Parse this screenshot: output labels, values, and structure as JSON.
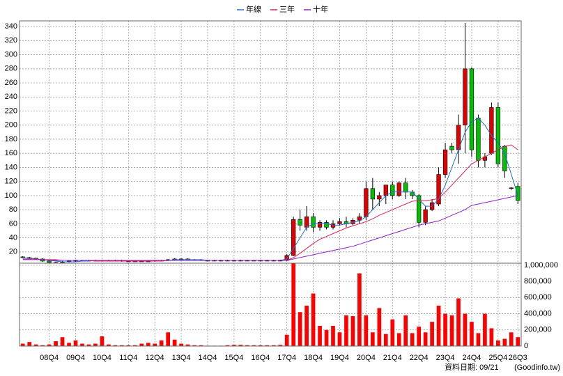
{
  "chart_data": [
    {
      "type": "candlestick",
      "open": [
        13,
        12,
        11,
        10,
        7,
        5,
        5,
        6,
        7,
        8,
        8,
        8,
        8,
        8,
        8,
        8,
        7,
        7,
        7,
        7,
        7,
        8,
        8,
        9,
        10,
        10,
        9,
        9,
        8,
        8,
        8,
        8,
        8,
        8,
        8,
        8,
        8,
        8,
        8,
        8,
        8,
        15,
        66,
        55,
        70,
        55,
        62,
        55,
        60,
        63,
        60,
        65,
        70,
        110,
        95,
        100,
        115,
        100,
        118,
        105,
        100,
        62,
        80,
        88,
        130,
        170,
        165,
        200,
        280,
        210,
        150,
        160,
        225,
        170,
        110,
        113
      ],
      "high": [
        14,
        13,
        12,
        11,
        8,
        6,
        7,
        8,
        9,
        9,
        9,
        9,
        9,
        9,
        9,
        9,
        8,
        8,
        8,
        8,
        9,
        9,
        10,
        11,
        11,
        11,
        10,
        10,
        9,
        9,
        9,
        9,
        9,
        9,
        9,
        9,
        9,
        9,
        9,
        9,
        17,
        70,
        80,
        85,
        75,
        65,
        65,
        65,
        68,
        70,
        68,
        75,
        120,
        125,
        105,
        115,
        120,
        120,
        125,
        108,
        102,
        85,
        95,
        140,
        175,
        175,
        215,
        345,
        282,
        215,
        160,
        232,
        232,
        172,
        112,
        118
      ],
      "low": [
        11,
        10,
        9,
        6,
        4,
        4,
        4,
        5,
        6,
        7,
        7,
        7,
        7,
        7,
        7,
        6,
        6,
        6,
        6,
        6,
        6,
        7,
        7,
        8,
        9,
        8,
        8,
        7,
        7,
        7,
        7,
        7,
        7,
        7,
        7,
        7,
        7,
        7,
        7,
        7,
        7,
        14,
        50,
        50,
        48,
        50,
        52,
        52,
        57,
        55,
        58,
        60,
        65,
        80,
        85,
        88,
        95,
        98,
        95,
        95,
        55,
        58,
        78,
        85,
        125,
        160,
        145,
        160,
        155,
        140,
        140,
        158,
        140,
        125,
        108,
        88
      ],
      "close": [
        12,
        11,
        10,
        7,
        5,
        5,
        6,
        7,
        8,
        8,
        8,
        8,
        8,
        8,
        8,
        7,
        7,
        7,
        7,
        7,
        8,
        8,
        9,
        10,
        10,
        9,
        9,
        8,
        8,
        8,
        8,
        8,
        8,
        8,
        8,
        8,
        8,
        8,
        8,
        8,
        15,
        66,
        58,
        70,
        55,
        62,
        55,
        60,
        63,
        60,
        65,
        70,
        110,
        95,
        100,
        115,
        100,
        118,
        105,
        100,
        62,
        80,
        90,
        130,
        165,
        165,
        200,
        280,
        165,
        150,
        155,
        225,
        145,
        135,
        111,
        93
      ],
      "up_color": "#e00000",
      "down_color": "#00c000",
      "series": [
        {
          "name": "年線",
          "color": "#1f6fd0",
          "values": [
            12,
            11,
            10,
            9,
            8,
            7,
            6,
            6,
            6,
            7,
            7,
            8,
            8,
            8,
            8,
            8,
            7,
            7,
            7,
            7,
            7,
            8,
            8,
            9,
            9,
            9,
            9,
            9,
            8,
            8,
            8,
            8,
            8,
            8,
            8,
            8,
            8,
            8,
            8,
            8,
            10,
            25,
            40,
            55,
            60,
            60,
            60,
            58,
            58,
            60,
            62,
            64,
            70,
            80,
            90,
            100,
            105,
            105,
            105,
            105,
            95,
            85,
            85,
            95,
            115,
            140,
            165,
            190,
            205,
            210,
            200,
            185,
            175,
            160,
            130,
            100
          ]
        },
        {
          "name": "三年",
          "color": "#e0205a",
          "values": [
            10,
            10,
            10,
            9,
            9,
            9,
            8,
            8,
            8,
            8,
            8,
            7,
            7,
            7,
            7,
            7,
            7,
            7,
            7,
            7,
            7,
            7,
            8,
            8,
            8,
            8,
            8,
            8,
            8,
            8,
            8,
            8,
            8,
            8,
            8,
            8,
            8,
            8,
            8,
            8,
            8,
            12,
            18,
            25,
            32,
            38,
            42,
            46,
            50,
            54,
            57,
            60,
            63,
            67,
            72,
            76,
            80,
            84,
            88,
            92,
            93,
            93,
            94,
            96,
            105,
            115,
            125,
            135,
            145,
            150,
            155,
            160,
            165,
            170,
            172,
            165
          ]
        },
        {
          "name": "十年",
          "color": "#8a20c8",
          "values": [
            9,
            9,
            9,
            9,
            8,
            8,
            8,
            8,
            8,
            8,
            8,
            8,
            8,
            8,
            8,
            8,
            8,
            8,
            8,
            8,
            8,
            8,
            8,
            8,
            8,
            8,
            8,
            8,
            8,
            8,
            8,
            8,
            8,
            8,
            8,
            8,
            8,
            8,
            8,
            8,
            8,
            10,
            12,
            14,
            16,
            18,
            20,
            22,
            24,
            26,
            28,
            31,
            34,
            37,
            40,
            43,
            46,
            49,
            52,
            55,
            58,
            60,
            62,
            64,
            68,
            72,
            76,
            80,
            86,
            88,
            90,
            92,
            94,
            96,
            98,
            100
          ]
        }
      ],
      "ylim": [
        4,
        348
      ],
      "yticks": [
        20,
        40,
        60,
        80,
        100,
        120,
        140,
        160,
        180,
        200,
        220,
        240,
        260,
        280,
        300,
        320,
        340
      ],
      "grid": true,
      "legend": "top"
    },
    {
      "type": "bar",
      "categories": [
        null,
        null,
        null,
        null,
        "08Q4",
        null,
        null,
        null,
        "09Q4",
        null,
        null,
        null,
        "10Q4",
        null,
        null,
        null,
        "11Q4",
        null,
        null,
        null,
        "12Q4",
        null,
        null,
        null,
        "13Q4",
        null,
        null,
        null,
        "14Q4",
        null,
        null,
        null,
        "15Q4",
        null,
        null,
        null,
        "16Q4",
        null,
        null,
        null,
        "17Q4",
        null,
        null,
        null,
        "18Q4",
        null,
        null,
        null,
        "19Q4",
        null,
        null,
        null,
        "20Q4",
        null,
        null,
        null,
        "21Q4",
        null,
        null,
        null,
        "22Q4",
        null,
        null,
        null,
        "23Q4",
        null,
        null,
        null,
        "24Q4",
        null,
        null,
        null,
        "25Q4",
        null,
        null,
        "26Q3"
      ],
      "values": [
        30000,
        50000,
        20000,
        10000,
        20000,
        60000,
        110000,
        40000,
        70000,
        30000,
        20000,
        30000,
        120000,
        20000,
        10000,
        10000,
        10000,
        10000,
        30000,
        40000,
        30000,
        70000,
        170000,
        80000,
        30000,
        20000,
        10000,
        10000,
        5000,
        5000,
        5000,
        10000,
        15000,
        15000,
        10000,
        10000,
        10000,
        10000,
        10000,
        15000,
        140000,
        1025000,
        420000,
        500000,
        650000,
        250000,
        200000,
        250000,
        170000,
        380000,
        370000,
        900000,
        380000,
        170000,
        470000,
        150000,
        330000,
        160000,
        380000,
        160000,
        240000,
        170000,
        300000,
        500000,
        400000,
        380000,
        590000,
        400000,
        300000,
        160000,
        400000,
        220000,
        70000,
        90000,
        170000,
        110000
      ],
      "color": "#ff0000",
      "ylim": [
        0,
        1025000
      ],
      "yticks": [
        0,
        {
          "value": 200000,
          "label": "200,000"
        },
        {
          "value": 400000,
          "label": "400,000"
        },
        {
          "value": 600000,
          "label": "600,000"
        },
        {
          "value": 800000,
          "label": "800,000"
        },
        {
          "value": 1000000,
          "label": "1,000,000"
        }
      ],
      "grid": true,
      "y_axis": "right"
    }
  ],
  "note": "資料日期: 09/21",
  "source": "(Goodinfo.tw)"
}
